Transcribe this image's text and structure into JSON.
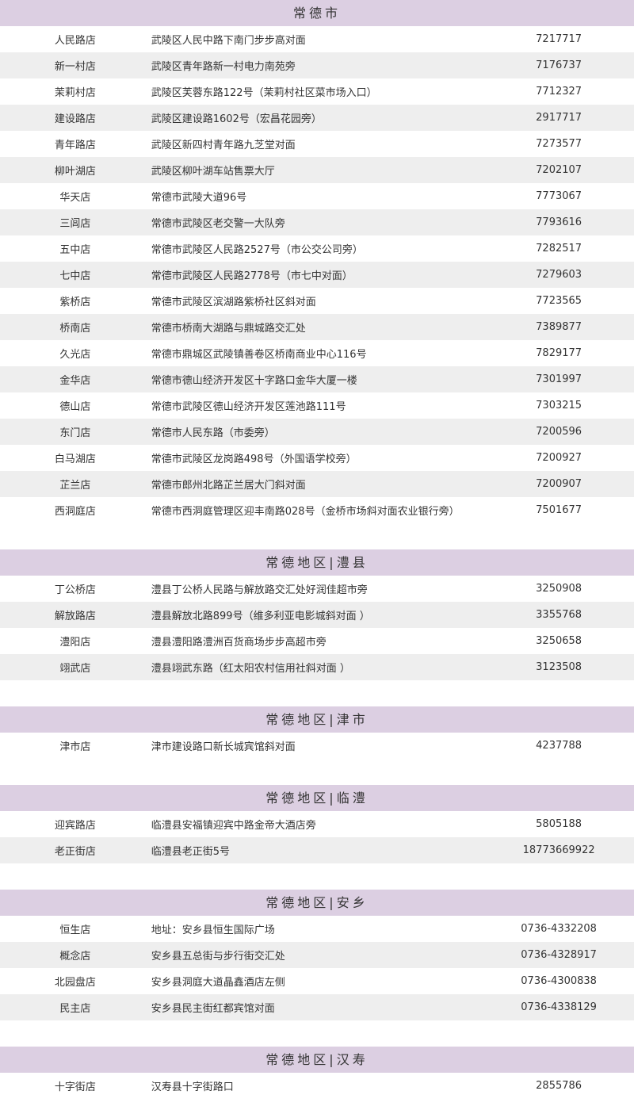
{
  "colors": {
    "header_bg": "#dccfe2",
    "row_alt_bg": "#eeeeee",
    "text": "#333333"
  },
  "sections": [
    {
      "title": "常德市",
      "stores": [
        {
          "name": "人民路店",
          "address": "武陵区人民中路下南门步步高对面",
          "phone": "7217717"
        },
        {
          "name": "新一村店",
          "address": "武陵区青年路新一村电力南苑旁",
          "phone": "7176737"
        },
        {
          "name": "茉莉村店",
          "address": "武陵区芙蓉东路122号（茉莉村社区菜市场入口）",
          "phone": "7712327"
        },
        {
          "name": "建设路店",
          "address": "武陵区建设路1602号（宏昌花园旁）",
          "phone": "2917717"
        },
        {
          "name": "青年路店",
          "address": "武陵区新四村青年路九芝堂对面",
          "phone": "7273577"
        },
        {
          "name": "柳叶湖店",
          "address": "武陵区柳叶湖车站售票大厅",
          "phone": "7202107"
        },
        {
          "name": "华天店",
          "address": "常德市武陵大道96号",
          "phone": "7773067"
        },
        {
          "name": "三闾店",
          "address": "常德市武陵区老交警一大队旁",
          "phone": "7793616"
        },
        {
          "name": "五中店",
          "address": "常德市武陵区人民路2527号（市公交公司旁）",
          "phone": "7282517"
        },
        {
          "name": "七中店",
          "address": "常德市武陵区人民路2778号（市七中对面）",
          "phone": "7279603"
        },
        {
          "name": "紫桥店",
          "address": "常德市武陵区滨湖路紫桥社区斜对面",
          "phone": "7723565"
        },
        {
          "name": "桥南店",
          "address": "常德市桥南大湖路与鼎城路交汇处",
          "phone": "7389877"
        },
        {
          "name": "久光店",
          "address": "常德市鼎城区武陵镇善卷区桥南商业中心116号",
          "phone": "7829177"
        },
        {
          "name": "金华店",
          "address": "常德市德山经济开发区十字路口金华大厦一楼",
          "phone": "7301997"
        },
        {
          "name": "德山店",
          "address": "常德市武陵区德山经济开发区莲池路111号",
          "phone": "7303215"
        },
        {
          "name": "东门店",
          "address": "常德市人民东路（市委旁）",
          "phone": "7200596"
        },
        {
          "name": "白马湖店",
          "address": "常德市武陵区龙岗路498号（外国语学校旁）",
          "phone": "7200927"
        },
        {
          "name": "芷兰店",
          "address": "常德市郎州北路芷兰居大门斜对面",
          "phone": "7200907"
        },
        {
          "name": "西洞庭店",
          "address": "常德市西洞庭管理区迎丰南路028号（金桥市场斜对面农业银行旁）",
          "phone": "7501677"
        }
      ]
    },
    {
      "title": "常德地区|澧县",
      "stores": [
        {
          "name": "丁公桥店",
          "address": "澧县丁公桥人民路与解放路交汇处好润佳超市旁",
          "phone": "3250908"
        },
        {
          "name": "解放路店",
          "address": "澧县解放北路899号（维多利亚电影城斜对面 ）",
          "phone": "3355768"
        },
        {
          "name": "澧阳店",
          "address": "澧县澧阳路澧洲百货商场步步高超市旁",
          "phone": "3250658"
        },
        {
          "name": "翊武店",
          "address": "澧县翊武东路（红太阳农村信用社斜对面 ）",
          "phone": "3123508"
        }
      ]
    },
    {
      "title": "常德地区|津市",
      "stores": [
        {
          "name": "津市店",
          "address": "津市建设路口新长城宾馆斜对面",
          "phone": "4237788"
        }
      ]
    },
    {
      "title": "常德地区|临澧",
      "stores": [
        {
          "name": "迎宾路店",
          "address": "临澧县安福镇迎宾中路金帝大酒店旁",
          "phone": "5805188"
        },
        {
          "name": "老正街店",
          "address": "临澧县老正街5号",
          "phone": "18773669922"
        }
      ]
    },
    {
      "title": "常德地区|安乡",
      "stores": [
        {
          "name": "恒生店",
          "address": "地址：安乡县恒生国际广场",
          "phone": "0736-4332208"
        },
        {
          "name": "概念店",
          "address": "安乡县五总街与步行街交汇处",
          "phone": "0736-4328917"
        },
        {
          "name": "北园盘店",
          "address": "安乡县洞庭大道晶鑫酒店左侧",
          "phone": "0736-4300838"
        },
        {
          "name": "民主店",
          "address": "安乡县民主街红都宾馆对面",
          "phone": "0736-4338129"
        }
      ]
    },
    {
      "title": "常德地区|汉寿",
      "stores": [
        {
          "name": "十字街店",
          "address": "汉寿县十字街路口",
          "phone": "2855786"
        }
      ]
    }
  ]
}
